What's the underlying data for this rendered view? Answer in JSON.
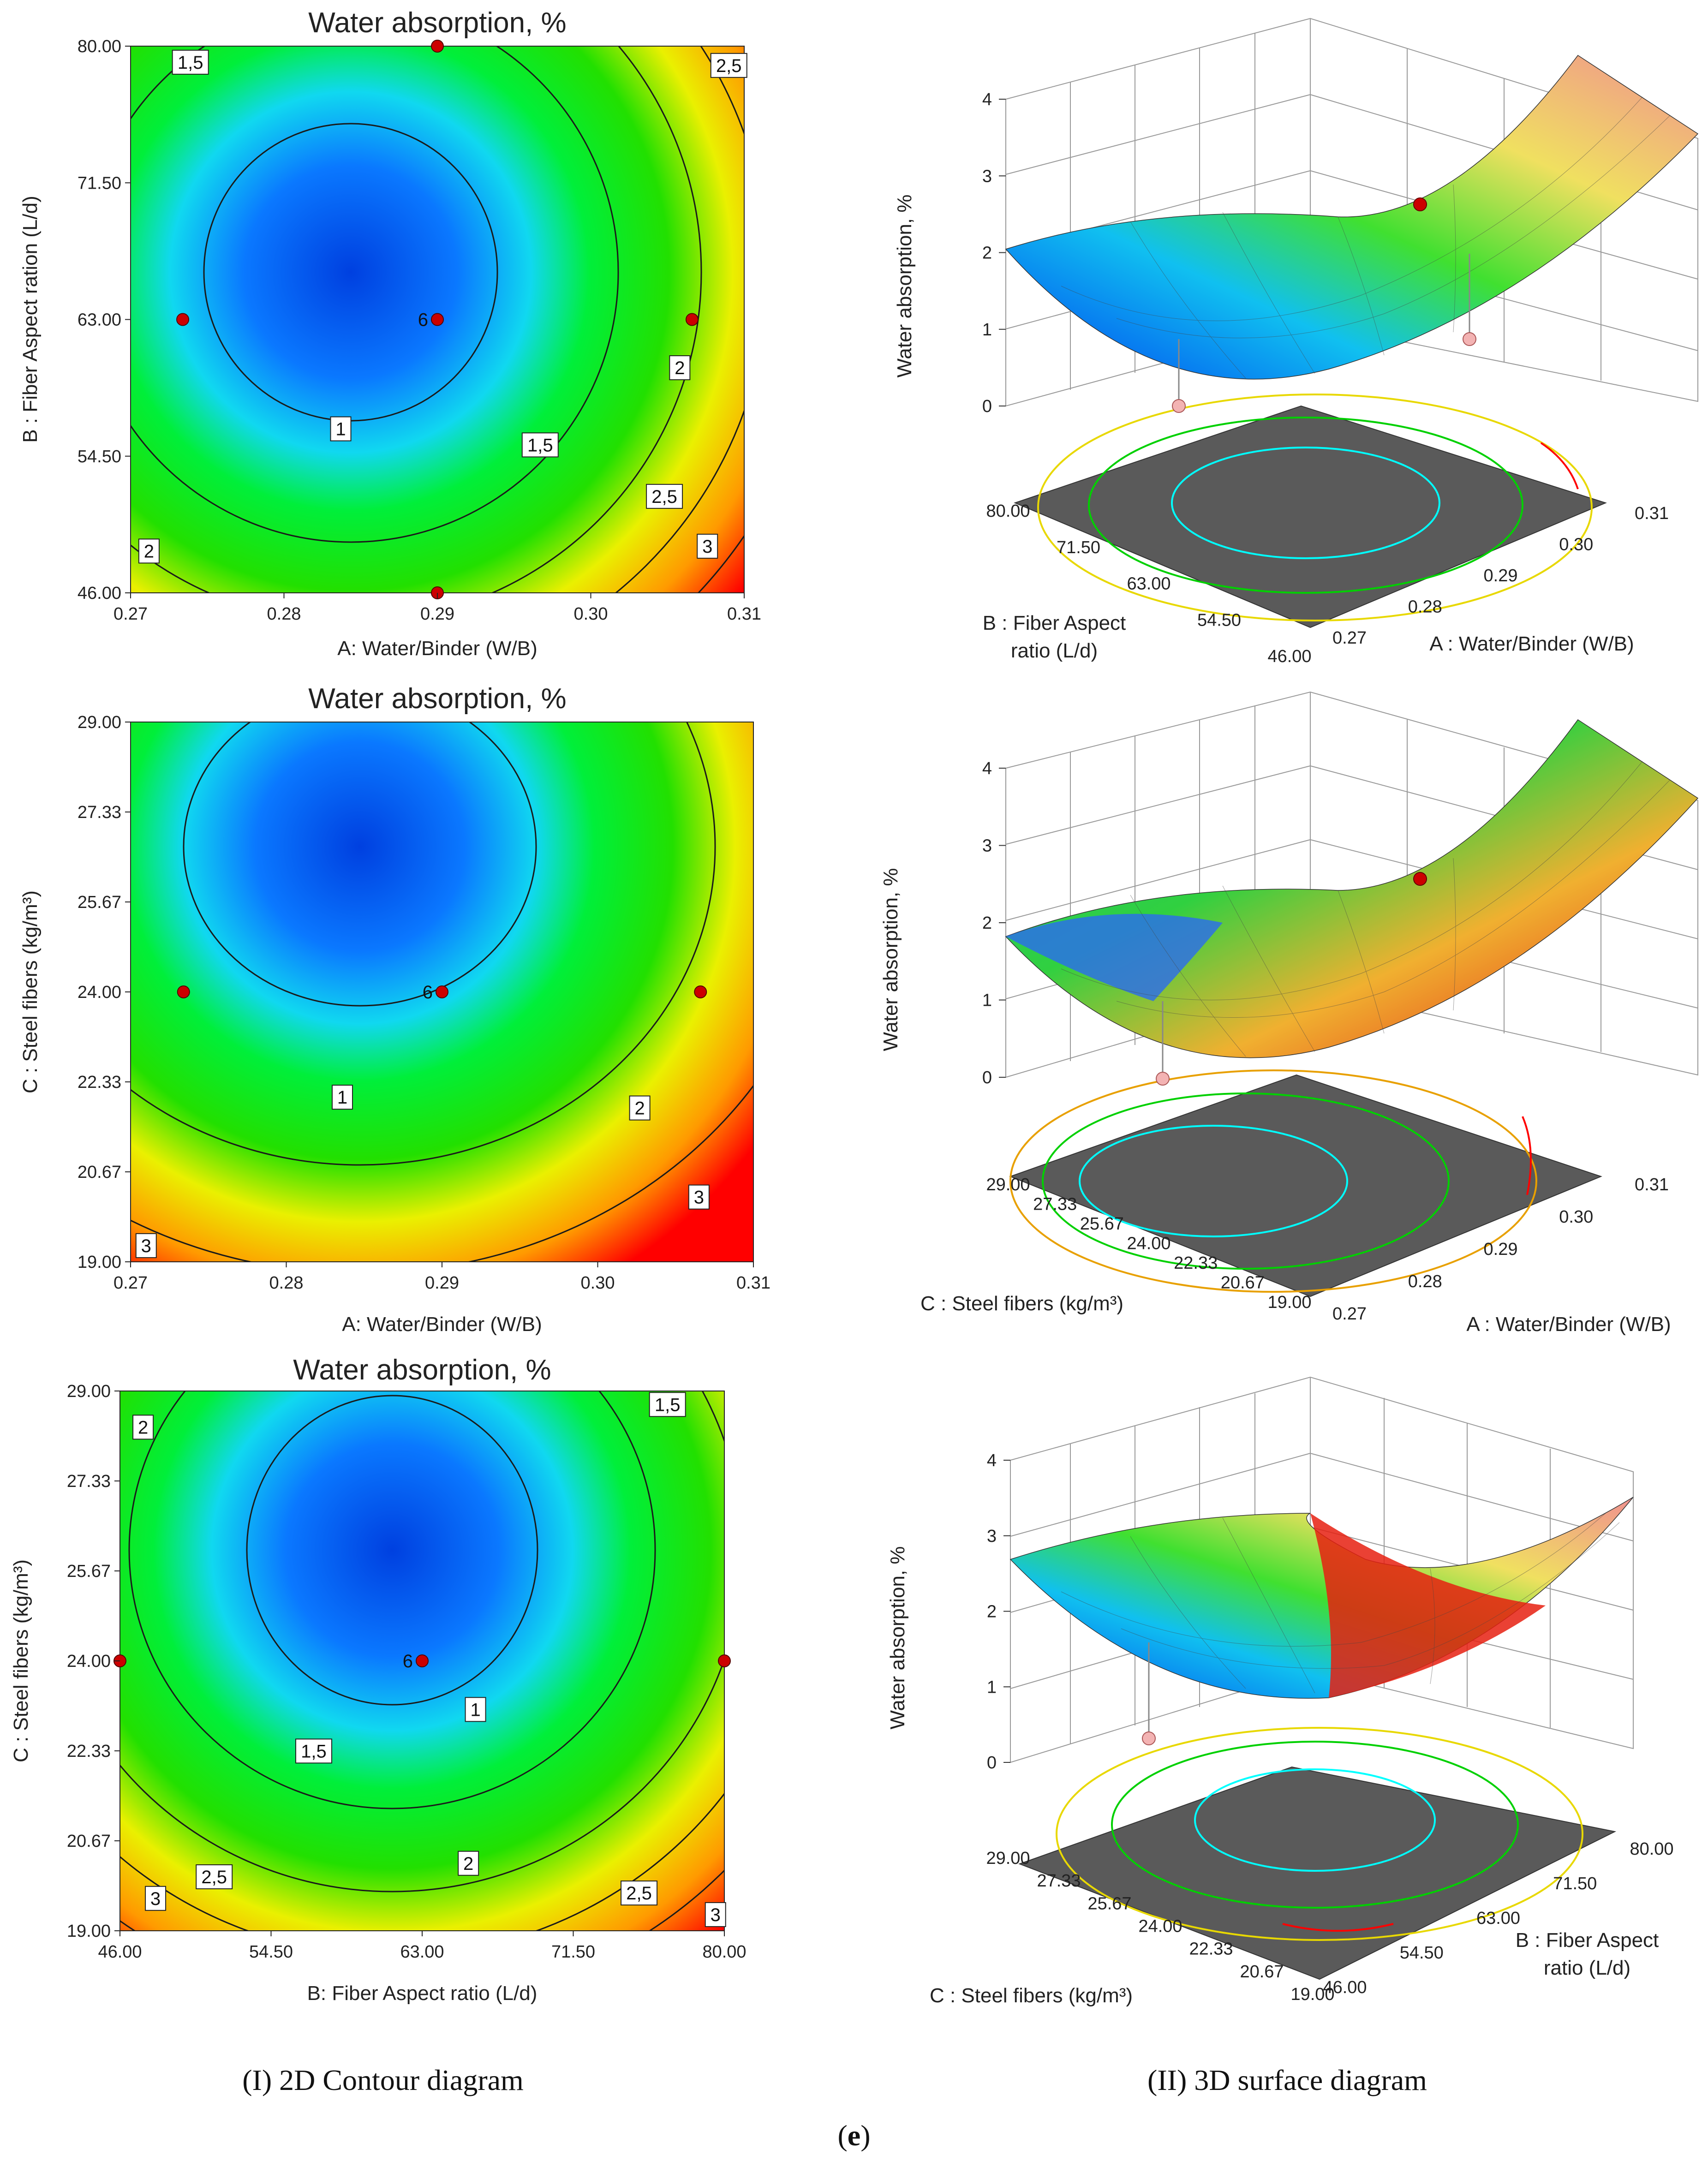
{
  "captions": {
    "left": "(I) 2D Contour diagram",
    "right": "(II) 3D surface diagram",
    "figure_label_open": "(",
    "figure_label_letter": "e",
    "figure_label_close": ")"
  },
  "colors": {
    "low": "#0050ff",
    "mid": "#00e000",
    "high": "#ff0000",
    "floor": "#5a5a5a",
    "point": "#cc0000"
  },
  "chart_data": [
    {
      "type": "contour",
      "title": "Water absorption, %",
      "xlabel": "A:  Water/Binder (W/B)",
      "ylabel": "B : Fiber Aspect ration (L/d)",
      "xticks": [
        "0.27",
        "0.28",
        "0.29",
        "0.30",
        "0.31"
      ],
      "yticks": [
        "46.00",
        "54.50",
        "63.00",
        "71.50",
        "80.00"
      ],
      "xlim": [
        0.27,
        0.31
      ],
      "ylim": [
        46,
        80
      ],
      "center": [
        0.2847,
        65.5
      ],
      "contour_levels": [
        1,
        1.5,
        2,
        2.5,
        3
      ],
      "contour_labels": [
        {
          "text": "1,5",
          "x": 0.2739,
          "y": 79.0
        },
        {
          "text": "2,5",
          "x": 0.309,
          "y": 78.8
        },
        {
          "text": "1",
          "x": 0.2837,
          "y": 56.2
        },
        {
          "text": "1,5",
          "x": 0.2967,
          "y": 55.2
        },
        {
          "text": "2",
          "x": 0.3058,
          "y": 60.0
        },
        {
          "text": "2,5",
          "x": 0.3048,
          "y": 52.0
        },
        {
          "text": "3",
          "x": 0.3076,
          "y": 48.9
        },
        {
          "text": "2",
          "x": 0.2712,
          "y": 48.6
        }
      ],
      "design_points": [
        {
          "x": 0.2734,
          "y": 63.0,
          "label": ""
        },
        {
          "x": 0.29,
          "y": 63.0,
          "label": "6"
        },
        {
          "x": 0.3066,
          "y": 63.0,
          "label": ""
        },
        {
          "x": 0.29,
          "y": 80.0,
          "label": ""
        },
        {
          "x": 0.29,
          "y": 46.0,
          "label": ""
        }
      ]
    },
    {
      "type": "contour",
      "title": "Water absorption, %",
      "xlabel": "A:  Water/Binder (W/B)",
      "ylabel": "C : Steel fibers (kg/m³)",
      "xticks": [
        "0.27",
        "0.28",
        "0.29",
        "0.30",
        "0.31"
      ],
      "yticks": [
        "19.00",
        "20.67",
        "22.33",
        "24.00",
        "25.67",
        "27.33",
        "29.00"
      ],
      "xlim": [
        0.27,
        0.31
      ],
      "ylim": [
        19,
        29
      ],
      "center": [
        0.2857,
        25.2
      ],
      "contour_levels": [
        1,
        2,
        3
      ],
      "contour_labels": [
        {
          "text": "1",
          "x": 0.2836,
          "y": 22.05
        },
        {
          "text": "2",
          "x": 0.3027,
          "y": 21.85
        },
        {
          "text": "3",
          "x": 0.3065,
          "y": 20.2
        },
        {
          "text": "3",
          "x": 0.271,
          "y": 19.3
        }
      ],
      "design_points": [
        {
          "x": 0.2734,
          "y": 24.0,
          "label": ""
        },
        {
          "x": 0.29,
          "y": 24.0,
          "label": "6"
        },
        {
          "x": 0.3066,
          "y": 24.0,
          "label": ""
        }
      ]
    },
    {
      "type": "contour",
      "title": "Water absorption, %",
      "xlabel": "B:  Fiber Aspect ratio (L/d)",
      "ylabel": "C : Steel fibers (kg/m³)",
      "xticks": [
        "46.00",
        "54.50",
        "63.00",
        "71.50",
        "80.00"
      ],
      "yticks": [
        "19.00",
        "20.67",
        "22.33",
        "24.00",
        "25.67",
        "27.33",
        "29.00"
      ],
      "xlim": [
        46,
        80
      ],
      "ylim": [
        19,
        29
      ],
      "center": [
        65.2,
        25.1
      ],
      "contour_levels": [
        1,
        1.5,
        2,
        2.5,
        3
      ],
      "contour_labels": [
        {
          "text": "2",
          "x": 47.3,
          "y": 28.33
        },
        {
          "text": "1,5",
          "x": 76.8,
          "y": 28.75
        },
        {
          "text": "1",
          "x": 66.0,
          "y": 23.1
        },
        {
          "text": "1,5",
          "x": 56.9,
          "y": 22.33
        },
        {
          "text": "2",
          "x": 65.6,
          "y": 20.25
        },
        {
          "text": "2,5",
          "x": 75.2,
          "y": 19.7
        },
        {
          "text": "2,5",
          "x": 51.3,
          "y": 20.0
        },
        {
          "text": "3",
          "x": 48.0,
          "y": 19.6
        },
        {
          "text": "3",
          "x": 79.5,
          "y": 19.3
        }
      ],
      "design_points": [
        {
          "x": 46.0,
          "y": 24.0,
          "label": ""
        },
        {
          "x": 63.0,
          "y": 24.0,
          "label": "6"
        },
        {
          "x": 80.0,
          "y": 24.0,
          "label": ""
        }
      ]
    },
    {
      "type": "surface3d",
      "zlabel": "Water absorption, %",
      "zticks": [
        "0",
        "1",
        "2",
        "3",
        "4"
      ],
      "x_axis_label": "A : Water/Binder (W/B)",
      "x_ticks": [
        "0.27",
        "0.28",
        "0.29",
        "0.30",
        "0.31"
      ],
      "y_axis_label_line1": "B : Fiber Aspect",
      "y_axis_label_line2": "ratio (L/d)",
      "y_ticks": [
        "46.00",
        "54.50",
        "63.00",
        "71.50",
        "80.00"
      ]
    },
    {
      "type": "surface3d",
      "zlabel": "Water absorption, %",
      "zticks": [
        "0",
        "1",
        "2",
        "3",
        "4"
      ],
      "x_axis_label": "A : Water/Binder (W/B)",
      "x_ticks": [
        "0.27",
        "0.28",
        "0.29",
        "0.30",
        "0.31"
      ],
      "y_axis_label": "C : Steel fibers (kg/m³)",
      "y_ticks": [
        "19.00",
        "20.67",
        "22.33",
        "24.00",
        "25.67",
        "27.33",
        "29.00"
      ]
    },
    {
      "type": "surface3d",
      "zlabel": "Water absorption, %",
      "zticks": [
        "0",
        "1",
        "2",
        "3",
        "4"
      ],
      "x_axis_label_line1": "B : Fiber Aspect",
      "x_axis_label_line2": "ratio (L/d)",
      "x_ticks": [
        "46.00",
        "54.50",
        "63.00",
        "71.50",
        "80.00"
      ],
      "y_axis_label": "C : Steel fibers (kg/m³)",
      "y_ticks": [
        "19.00",
        "20.67",
        "22.33",
        "24.00",
        "25.67",
        "27.33",
        "29.00"
      ]
    }
  ]
}
